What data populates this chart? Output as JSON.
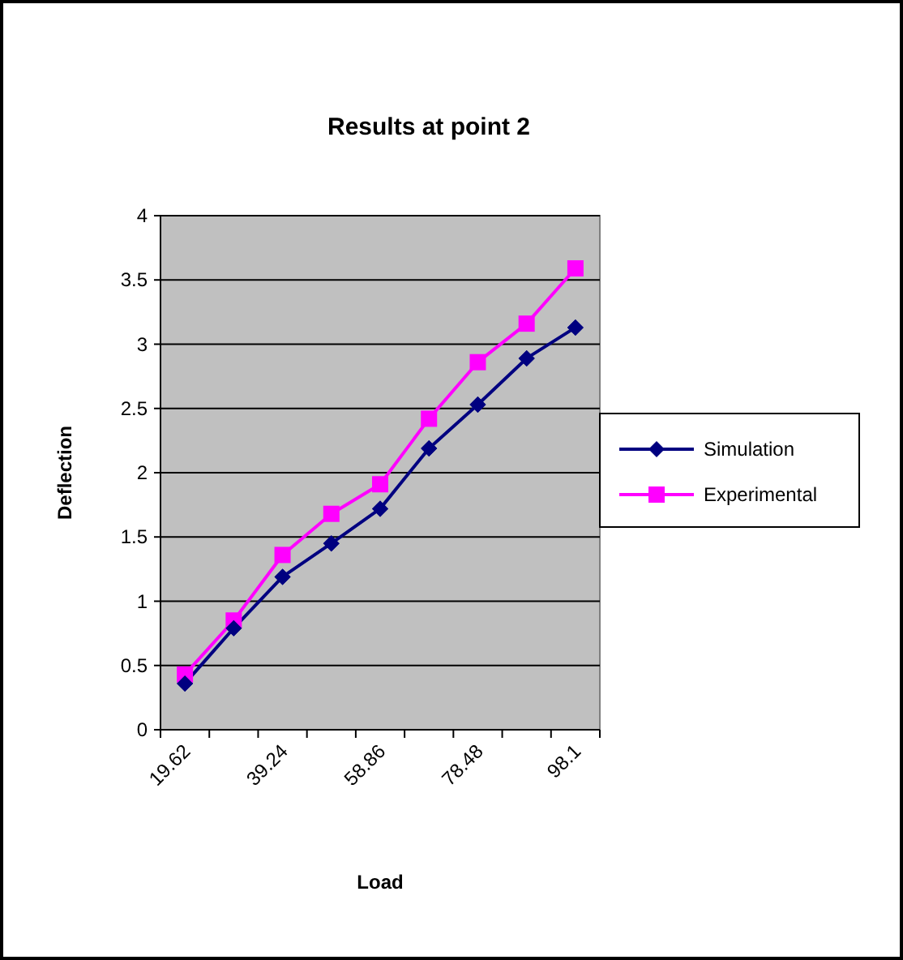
{
  "chart_data": {
    "type": "line",
    "title": "Results at point 2",
    "xlabel": "Load",
    "ylabel": "Deflection",
    "categories": [
      "19.62",
      null,
      "39.24",
      null,
      "58.86",
      null,
      "78.48",
      null,
      "98.1"
    ],
    "series": [
      {
        "name": "Simulation",
        "color": "#000080",
        "marker": "diamond",
        "values": [
          0.36,
          0.79,
          1.19,
          1.45,
          1.72,
          2.19,
          2.53,
          2.89,
          3.13
        ]
      },
      {
        "name": "Experimental",
        "color": "#ff00ff",
        "marker": "square",
        "values": [
          0.43,
          0.85,
          1.36,
          1.68,
          1.91,
          2.42,
          2.86,
          3.16,
          3.59
        ]
      }
    ],
    "ylim": [
      0,
      4
    ],
    "yticks": [
      0,
      0.5,
      1,
      1.5,
      2,
      2.5,
      3,
      3.5,
      4
    ],
    "grid": "y",
    "legend": "right",
    "line_style": "solid"
  }
}
